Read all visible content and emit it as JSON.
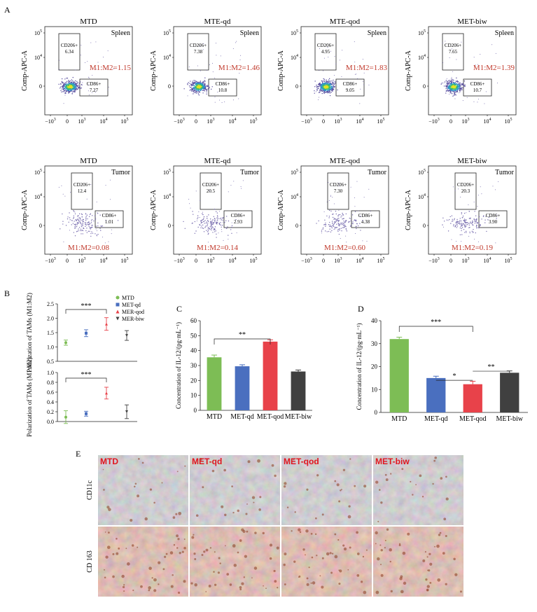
{
  "panel_labels": {
    "a": "A",
    "b": "B",
    "c": "C",
    "d": "D",
    "e": "E"
  },
  "flow": {
    "y_axis_label": "Comp-APC-A",
    "y_ticks": [
      "10",
      "10",
      "0"
    ],
    "y_tick_exps": [
      "5",
      "4",
      ""
    ],
    "x_ticks": [
      "−10",
      "0",
      "10",
      "10",
      "10"
    ],
    "x_tick_exps": [
      "3",
      "",
      "3",
      "4",
      "5"
    ],
    "plots": [
      {
        "title": "MTD",
        "tissue": "Spleen",
        "cd206_label": "CD206+",
        "cd206": "6.34",
        "cd86_label": "CD86+",
        "cd86": "7.27",
        "ratio": "M1:M2=1.15"
      },
      {
        "title": "MTE-qd",
        "tissue": "Spleen",
        "cd206_label": "CD206+",
        "cd206": "7.38",
        "cd86_label": "CD86+",
        "cd86": "10.8",
        "ratio": "M1:M2=1.46"
      },
      {
        "title": "MTE-qod",
        "tissue": "Spleen",
        "cd206_label": "CD206+",
        "cd206": "4.95",
        "cd86_label": "CD86+",
        "cd86": "9.05",
        "ratio": "M1:M2=1.83"
      },
      {
        "title": "MET-biw",
        "tissue": "Spleen",
        "cd206_label": "CD206+",
        "cd206": "7.65",
        "cd86_label": "CD86+",
        "cd86": "10.7",
        "ratio": "M1:M2=1.39"
      },
      {
        "title": "MTD",
        "tissue": "Tumor",
        "cd206_label": "CD206+",
        "cd206": "12.4",
        "cd86_label": "CD86+",
        "cd86": "1.01",
        "ratio": "M1:M2=0.08"
      },
      {
        "title": "MTE-qd",
        "tissue": "Tumor",
        "cd206_label": "CD206+",
        "cd206": "20.5",
        "cd86_label": "CD86+",
        "cd86": "2.93",
        "ratio": "M1:M2=0.14"
      },
      {
        "title": "MTE-qod",
        "tissue": "Tumor",
        "cd206_label": "CD206+",
        "cd206": "7.30",
        "cd86_label": "CD86+",
        "cd86": "4.38",
        "ratio": "M1:M2=0.60"
      },
      {
        "title": "MET-biw",
        "tissue": "Tumor",
        "cd206_label": "CD206+",
        "cd206": "20.3",
        "cd86_label": "CD86+",
        "cd86": "3.90",
        "ratio": "M1:M2=0.19"
      }
    ]
  },
  "ihc": {
    "columns": [
      "MTD",
      "MET-qd",
      "MET-qod",
      "MET-biw"
    ],
    "rows": [
      "CD11c",
      "CD 163"
    ]
  },
  "colors": {
    "green": "#7dbd55",
    "blue": "#4a6fbf",
    "red": "#e8424a",
    "black": "#404040",
    "ratio_text": "#c0392b",
    "ihc_label": "#e0161e"
  },
  "chart_data": [
    {
      "type": "scatter",
      "panel": "B-top",
      "ylabel": "Polarization of TAMs (M1:M2)",
      "ylim": [
        0.5,
        2.5
      ],
      "y_ticks": [
        "2.5",
        "2.0",
        "1.5",
        "1.0",
        "0.5"
      ],
      "y_tick_values": [
        2.5,
        2.0,
        1.5,
        1.0,
        0.5
      ],
      "significance": "***",
      "legend": [
        "MTD",
        "MET-qd",
        "MER-qod",
        "MER-biw"
      ],
      "points": [
        {
          "x": 1,
          "y": 1.15,
          "err": 0.09
        },
        {
          "x": 2,
          "y": 1.48,
          "err": 0.12
        },
        {
          "x": 3,
          "y": 1.8,
          "err": 0.22
        },
        {
          "x": 4,
          "y": 1.4,
          "err": 0.17
        }
      ]
    },
    {
      "type": "scatter",
      "panel": "B-bottom",
      "ylabel": "Polarization of TAMs (M1:M2)",
      "ylim": [
        0.0,
        1.0
      ],
      "y_ticks": [
        "1.0",
        "0.8",
        "0.6",
        "0.4",
        "0.2",
        "0.0"
      ],
      "y_tick_values": [
        1.0,
        0.8,
        0.6,
        0.4,
        0.2,
        0.0
      ],
      "significance": "***",
      "points": [
        {
          "x": 1,
          "y": 0.09,
          "err": 0.13
        },
        {
          "x": 2,
          "y": 0.16,
          "err": 0.05
        },
        {
          "x": 3,
          "y": 0.58,
          "err": 0.12
        },
        {
          "x": 4,
          "y": 0.2,
          "err": 0.14
        }
      ]
    },
    {
      "type": "bar",
      "panel": "C",
      "ylabel": "Concentration of IL-12/(pg·mL⁻¹)",
      "ylim": [
        0,
        60
      ],
      "y_ticks": [
        "60",
        "50",
        "40",
        "30",
        "20",
        "10",
        "0"
      ],
      "y_tick_values": [
        60,
        50,
        40,
        30,
        20,
        10,
        0
      ],
      "categories": [
        "MTD",
        "MET-qd",
        "MET-qod",
        "MET-biw"
      ],
      "values": [
        35.5,
        29.5,
        46.0,
        26.0
      ],
      "errors": [
        1.5,
        1.0,
        1.2,
        1.0
      ],
      "significance": [
        {
          "from": 0,
          "to": 2,
          "label": "**"
        }
      ]
    },
    {
      "type": "bar",
      "panel": "D",
      "ylabel": "Concentration of IL-12/(pg·mL⁻¹)",
      "ylim": [
        0,
        40
      ],
      "y_ticks": [
        "40",
        "30",
        "20",
        "10",
        "0"
      ],
      "y_tick_values": [
        40,
        30,
        20,
        10,
        0
      ],
      "categories": [
        "MTD",
        "MET-qd",
        "MET-qod",
        "MET-biw"
      ],
      "values": [
        32.0,
        15.0,
        12.3,
        17.3
      ],
      "errors": [
        0.8,
        0.8,
        1.3,
        0.8
      ],
      "significance": [
        {
          "from": 0,
          "to": 2,
          "label": "***"
        },
        {
          "from": 1,
          "to": 2,
          "label": "*"
        },
        {
          "from": 2,
          "to": 3,
          "label": "**"
        }
      ]
    }
  ]
}
